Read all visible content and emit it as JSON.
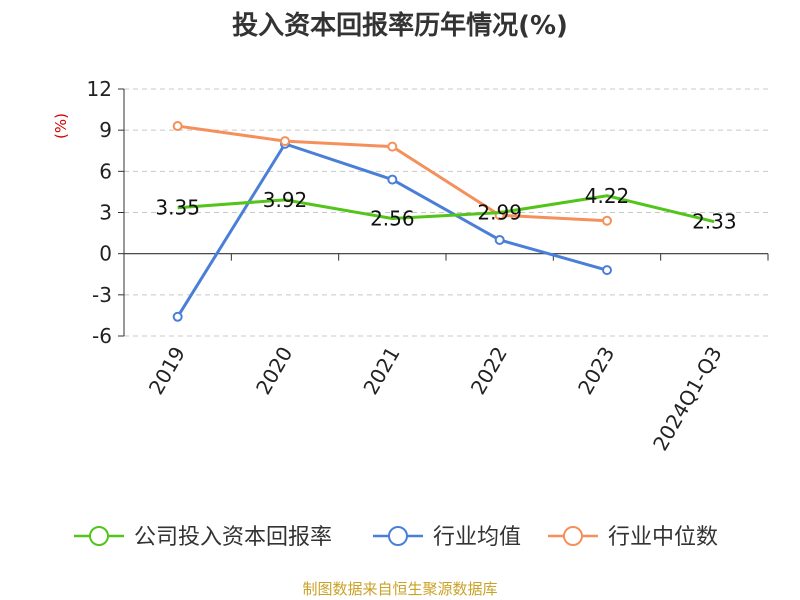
{
  "chart_data": {
    "type": "line",
    "title": "投入资本回报率历年情况(%)",
    "ylabel": "(%)",
    "xlabel": "",
    "categories": [
      "2019",
      "2020",
      "2021",
      "2022",
      "2023",
      "2024Q1-Q3"
    ],
    "ylim": [
      -6,
      12
    ],
    "yticks": [
      12,
      9,
      6,
      3,
      0,
      -3,
      -6
    ],
    "ytick_labels": [
      "12",
      "9",
      "6",
      "3",
      "0",
      "-3",
      "-6"
    ],
    "grid": true,
    "legend_position": "bottom",
    "series": [
      {
        "name": "公司投入资本回报率",
        "color": "#52c41a",
        "values": [
          3.35,
          3.92,
          2.56,
          2.99,
          4.22,
          2.33
        ],
        "labels": [
          "3.35",
          "3.92",
          "2.56",
          "2.99",
          "4.22",
          "2.33"
        ],
        "marker": "none"
      },
      {
        "name": "行业均值",
        "color": "#4a7fd8",
        "values": [
          -4.6,
          8.0,
          5.4,
          1.0,
          -1.2,
          null
        ],
        "marker": "circle"
      },
      {
        "name": "行业中位数",
        "color": "#f5905b",
        "values": [
          9.3,
          8.2,
          7.8,
          2.8,
          2.4,
          null
        ],
        "marker": "circle"
      }
    ],
    "source": "制图数据来自恒生聚源数据库"
  }
}
